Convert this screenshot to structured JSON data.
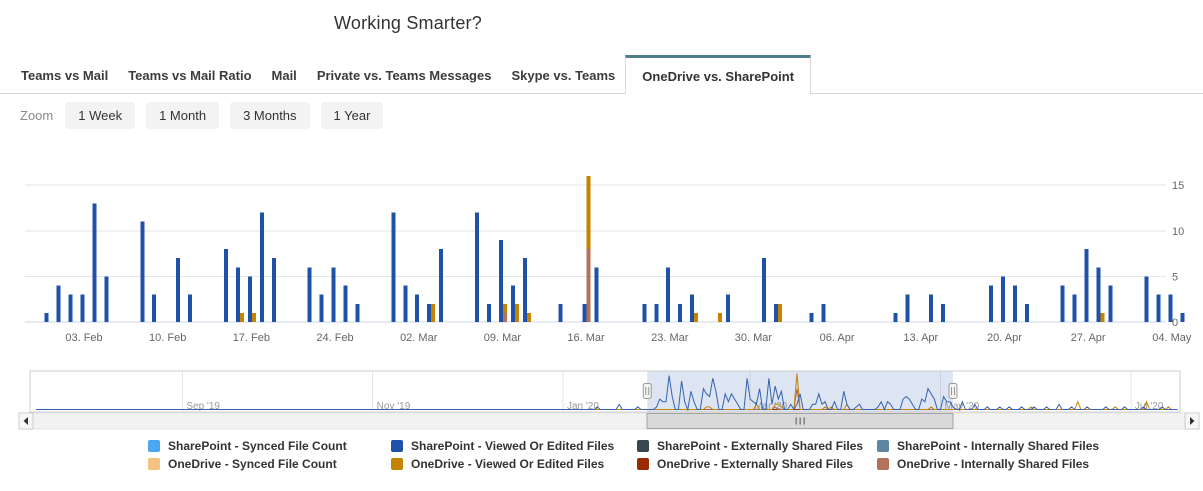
{
  "header": {
    "title": "Working Smarter?"
  },
  "tabs": {
    "items": [
      {
        "label": "Teams vs Mail",
        "active": false
      },
      {
        "label": "Teams vs Mail Ratio",
        "active": false
      },
      {
        "label": "Mail",
        "active": false
      },
      {
        "label": "Private vs. Teams Messages",
        "active": false
      },
      {
        "label": "Skype vs. Teams",
        "active": false
      },
      {
        "label": "OneDrive vs. SharePoint",
        "active": true
      }
    ],
    "active_accent_color": "#4e7d8c"
  },
  "zoom_controls": {
    "label": "Zoom",
    "buttons": [
      "1 Week",
      "1 Month",
      "3 Months",
      "1 Year"
    ]
  },
  "chart_data": {
    "type": "bar",
    "title": "Working Smarter?",
    "grid": true,
    "legend_position": "bottom",
    "x_axis": {
      "tick_labels": [
        "03. Feb",
        "10. Feb",
        "17. Feb",
        "24. Feb",
        "02. Mar",
        "09. Mar",
        "16. Mar",
        "23. Mar",
        "30. Mar",
        "06. Apr",
        "13. Apr",
        "20. Apr",
        "27. Apr",
        "04. May"
      ],
      "visible_from": "2020-01-28",
      "visible_to": "2020-05-06"
    },
    "y_axis": {
      "position": "right",
      "ticks": [
        0,
        5,
        10,
        15
      ],
      "max": 16.5
    },
    "series": [
      {
        "id": "sp_synced",
        "name": "SharePoint - Synced File Count",
        "color": "#4da6f0",
        "points": {}
      },
      {
        "id": "sp_viewed",
        "name": "SharePoint - Viewed Or Edited Files",
        "color": "#2051a8",
        "points": {
          "2020-01-31": 1,
          "2020-02-01": 4,
          "2020-02-02": 3,
          "2020-02-03": 3,
          "2020-02-04": 13,
          "2020-02-05": 5,
          "2020-02-08": 11,
          "2020-02-09": 3,
          "2020-02-11": 7,
          "2020-02-12": 3,
          "2020-02-15": 8,
          "2020-02-16": 6,
          "2020-02-17": 5,
          "2020-02-18": 12,
          "2020-02-19": 7,
          "2020-02-22": 6,
          "2020-02-23": 3,
          "2020-02-24": 6,
          "2020-02-25": 4,
          "2020-02-26": 2,
          "2020-02-29": 12,
          "2020-03-01": 4,
          "2020-03-02": 3,
          "2020-03-03": 2,
          "2020-03-04": 8,
          "2020-03-07": 12,
          "2020-03-08": 2,
          "2020-03-09": 9,
          "2020-03-10": 4,
          "2020-03-11": 7,
          "2020-03-14": 2,
          "2020-03-16": 2,
          "2020-03-17": 6,
          "2020-03-21": 2,
          "2020-03-22": 2,
          "2020-03-23": 6,
          "2020-03-24": 2,
          "2020-03-25": 3,
          "2020-03-28": 3,
          "2020-03-31": 7,
          "2020-04-01": 2,
          "2020-04-04": 1,
          "2020-04-05": 2,
          "2020-04-11": 1,
          "2020-04-12": 3,
          "2020-04-14": 3,
          "2020-04-15": 2,
          "2020-04-19": 4,
          "2020-04-20": 5,
          "2020-04-21": 4,
          "2020-04-22": 2,
          "2020-04-25": 4,
          "2020-04-26": 3,
          "2020-04-27": 8,
          "2020-04-28": 6,
          "2020-04-29": 4,
          "2020-05-02": 5,
          "2020-05-03": 3,
          "2020-05-04": 3,
          "2020-05-05": 1
        }
      },
      {
        "id": "sp_external",
        "name": "SharePoint - Externally Shared Files",
        "color": "#37474f",
        "points": {}
      },
      {
        "id": "sp_internal",
        "name": "SharePoint - Internally Shared Files",
        "color": "#5e86a0",
        "points": {}
      },
      {
        "id": "od_synced",
        "name": "OneDrive - Synced File Count",
        "color": "#f7c083",
        "points": {}
      },
      {
        "id": "od_viewed",
        "name": "OneDrive - Viewed Or Edited Files",
        "color": "#c58300",
        "points": {
          "2020-02-16": 1,
          "2020-02-17": 1,
          "2020-03-03": 2,
          "2020-03-09": 2,
          "2020-03-10": 2,
          "2020-03-11": 1,
          "2020-03-16": 16,
          "2020-03-25": 1,
          "2020-03-27": 1,
          "2020-04-01": 2,
          "2020-04-28": 1
        }
      },
      {
        "id": "od_external",
        "name": "OneDrive - Externally Shared Files",
        "color": "#9a2b00",
        "points": {}
      },
      {
        "id": "od_internal",
        "name": "OneDrive - Internally Shared Files",
        "color": "#b4715a",
        "points": {
          "2020-03-09": 1,
          "2020-03-16": 8
        }
      }
    ],
    "navigator": {
      "month_labels": [
        {
          "label": "Sep '19",
          "date": "2019-09-01"
        },
        {
          "label": "Nov '19",
          "date": "2019-11-01"
        },
        {
          "label": "Jan '20",
          "date": "2020-01-01"
        },
        {
          "label": "Mar '20",
          "date": "2020-03-01"
        },
        {
          "label": "May '20",
          "date": "2020-05-01"
        },
        {
          "label": "Jul '20",
          "date": "2020-07-01"
        }
      ],
      "selection": {
        "from": "2020-01-28",
        "to": "2020-05-05"
      },
      "pre_range_sharepoint": {
        "2020-01-12": 1,
        "2020-01-19": 2,
        "2020-01-25": 1
      },
      "post_range_sharepoint": {
        "2020-05-08": 3,
        "2020-05-12": 2,
        "2020-05-16": 1,
        "2020-05-20": 1,
        "2020-05-23": 1,
        "2020-05-27": 1,
        "2020-05-31": 1,
        "2020-06-04": 1,
        "2020-06-08": 2,
        "2020-06-12": 1,
        "2020-06-17": 1,
        "2020-06-23": 1,
        "2020-06-29": 1,
        "2020-07-05": 1,
        "2020-07-11": 1
      },
      "post_range_onedrive": {
        "2020-05-30": 1,
        "2020-06-14": 3,
        "2020-06-26": 1,
        "2020-07-06": 3,
        "2020-07-13": 1
      }
    }
  },
  "colors": {
    "gridline": "#e6e6e6",
    "axis_line": "#ccd6eb",
    "axis_label": "#666666",
    "nav_label": "#999999",
    "nav_mask": "rgba(101,132,195,0.22)",
    "nav_line_blue": "#3462b0",
    "nav_line_orange": "#c58300",
    "nav_line_red": "#8f2a00",
    "nav_line_brown": "#a9674f"
  }
}
